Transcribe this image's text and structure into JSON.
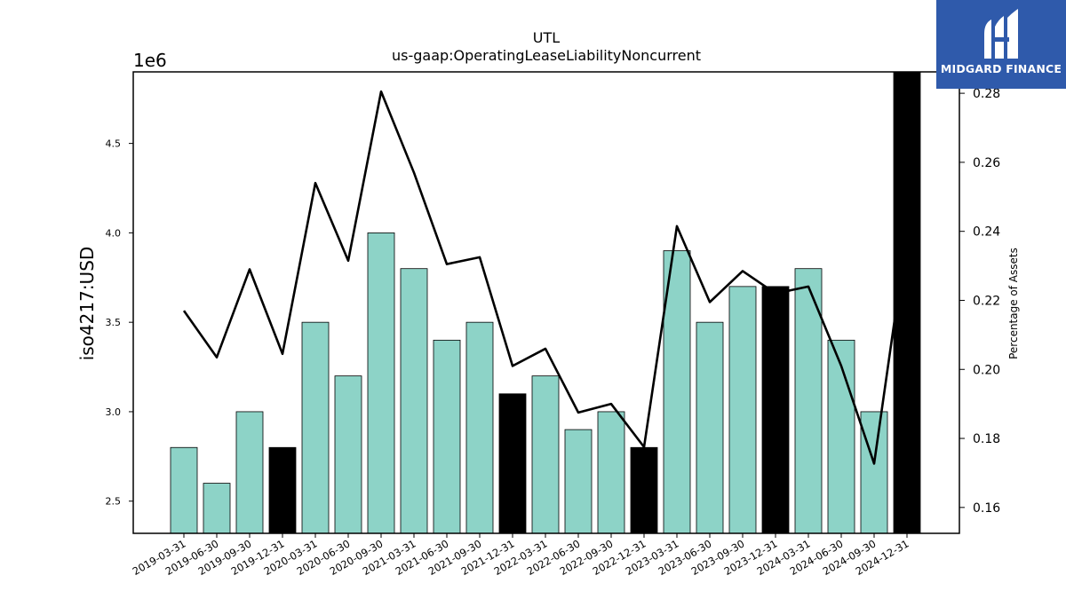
{
  "chart_data": {
    "type": "bar",
    "title": "UTL",
    "subtitle": "us-gaap:OperatingLeaseLiabilityNoncurrent",
    "ylabel": "iso4217:USD",
    "y2label": "Percentage of Assets",
    "y_offset_label": "1e6",
    "ylim": [
      2.32,
      4.9
    ],
    "y2lim": [
      0.1525,
      0.2862
    ],
    "y_ticks": [
      "2.5",
      "3.0",
      "3.5",
      "4.0",
      "4.5"
    ],
    "y2_ticks": [
      "0.16",
      "0.18",
      "0.20",
      "0.22",
      "0.24",
      "0.26",
      "0.28"
    ],
    "categories": [
      "2019-03-31",
      "2019-06-30",
      "2019-09-30",
      "2019-12-31",
      "2020-03-31",
      "2020-06-30",
      "2020-09-30",
      "2021-03-31",
      "2021-06-30",
      "2021-09-30",
      "2021-12-31",
      "2022-03-31",
      "2022-06-30",
      "2022-09-30",
      "2022-12-31",
      "2023-03-31",
      "2023-06-30",
      "2023-09-30",
      "2023-12-31",
      "2024-03-31",
      "2024-06-30",
      "2024-09-30",
      "2024-12-31"
    ],
    "series": [
      {
        "type": "bar",
        "values": [
          2.8,
          2.6,
          3.0,
          2.8,
          3.5,
          3.2,
          4.0,
          3.8,
          3.4,
          3.5,
          3.1,
          3.2,
          2.9,
          3.0,
          2.8,
          3.9,
          3.5,
          3.7,
          3.7,
          3.8,
          3.4,
          3.0,
          4.9
        ],
        "annual": [
          false,
          false,
          false,
          true,
          false,
          false,
          false,
          false,
          false,
          false,
          true,
          false,
          false,
          false,
          true,
          false,
          false,
          false,
          true,
          false,
          false,
          false,
          true
        ]
      },
      {
        "type": "line",
        "values": [
          0.217,
          0.2035,
          0.229,
          0.2045,
          0.254,
          0.2315,
          0.2805,
          0.257,
          0.2305,
          0.2325,
          0.201,
          0.206,
          0.1875,
          0.19,
          0.1775,
          0.2415,
          0.2195,
          0.2285,
          0.222,
          0.224,
          0.201,
          0.1727,
          0.2395
        ]
      }
    ],
    "colors": {
      "quarter_bar": "#8dd3c7",
      "annual_bar": "#000000",
      "line": "#000000"
    }
  },
  "logo": {
    "text": "MIDGARD FINANCE",
    "bg": "#2f5aab"
  }
}
